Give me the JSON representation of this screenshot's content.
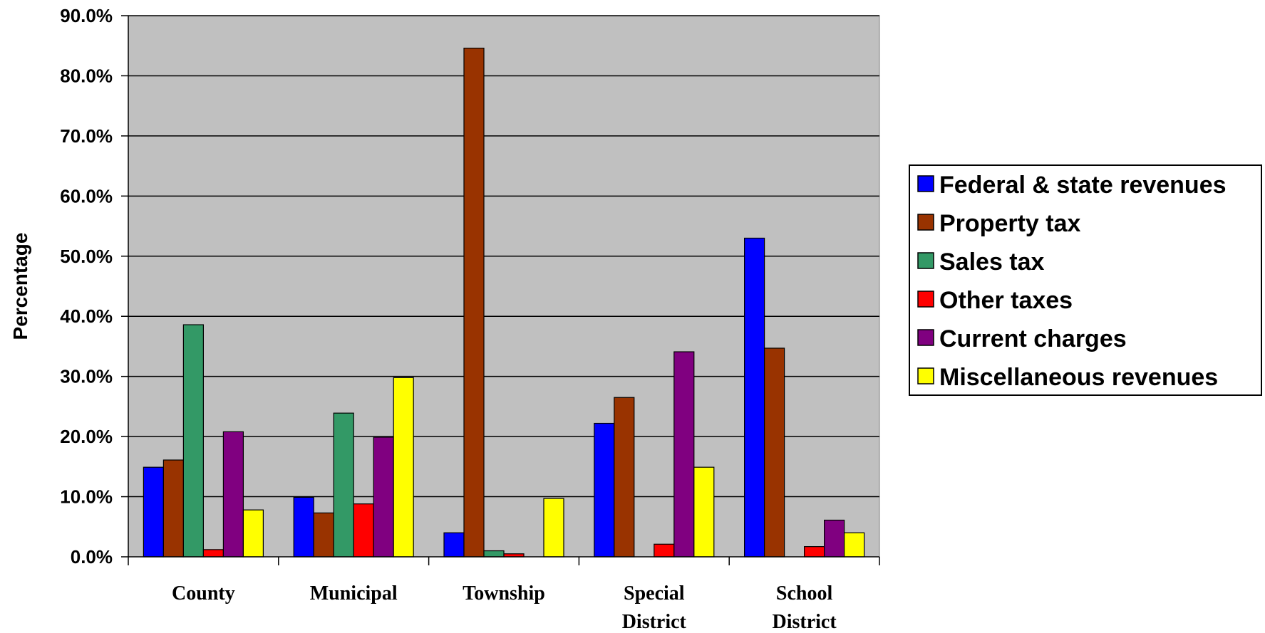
{
  "chart_data": {
    "type": "bar",
    "title": "",
    "xlabel": "",
    "ylabel": "Percentage",
    "ylim": [
      0,
      90
    ],
    "ytick_step": 10,
    "ytick_labels": [
      "0.0%",
      "10.0%",
      "20.0%",
      "30.0%",
      "40.0%",
      "50.0%",
      "60.0%",
      "70.0%",
      "80.0%",
      "90.0%"
    ],
    "grid": true,
    "plot_background": "#c0c0c0",
    "legend_position": "right",
    "categories": [
      [
        "County"
      ],
      [
        "Municipal"
      ],
      [
        "Township"
      ],
      [
        "Special",
        "District"
      ],
      [
        "School",
        "District"
      ]
    ],
    "series": [
      {
        "name": "Federal & state revenues",
        "color": "#0000ff",
        "values": [
          14.9,
          9.9,
          4.0,
          22.2,
          53.0
        ]
      },
      {
        "name": "Property tax",
        "color": "#993300",
        "values": [
          16.1,
          7.3,
          84.6,
          26.5,
          34.7
        ]
      },
      {
        "name": "Sales tax",
        "color": "#339966",
        "values": [
          38.6,
          23.9,
          1.0,
          0.0,
          0.0
        ]
      },
      {
        "name": "Other taxes",
        "color": "#ff0000",
        "values": [
          1.2,
          8.8,
          0.5,
          2.1,
          1.7
        ]
      },
      {
        "name": "Current charges",
        "color": "#800080",
        "values": [
          20.8,
          19.9,
          0.0,
          34.1,
          6.1
        ]
      },
      {
        "name": "Miscellaneous revenues",
        "color": "#ffff00",
        "values": [
          7.8,
          29.8,
          9.7,
          14.9,
          4.0
        ]
      }
    ]
  }
}
